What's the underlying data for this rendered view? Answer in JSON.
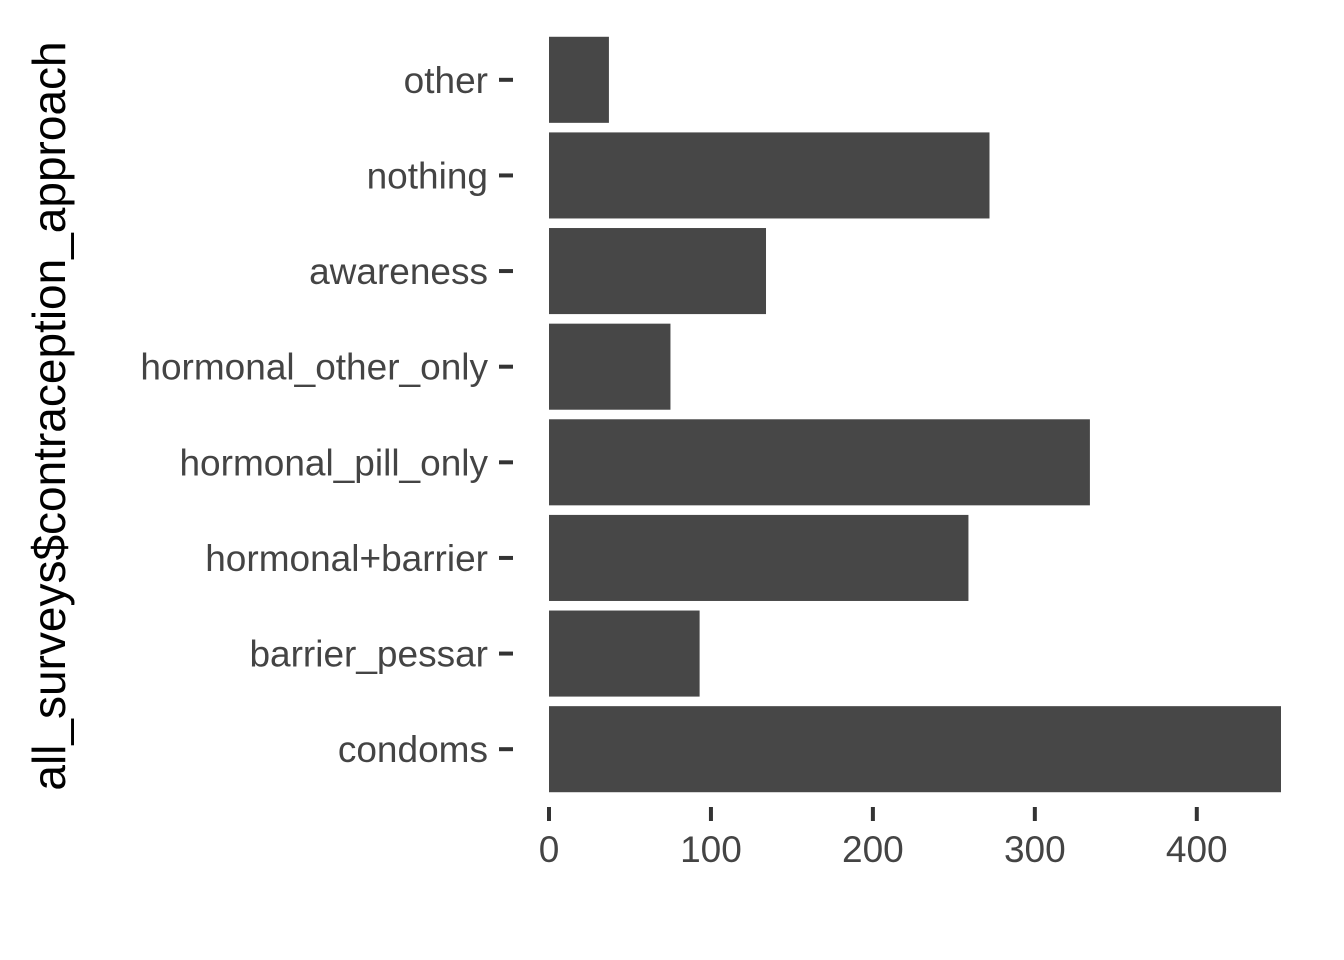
{
  "chart_data": {
    "type": "bar",
    "orientation": "horizontal",
    "title": "",
    "xlabel": "",
    "ylabel": "all_surveys$contraception_approach",
    "categories": [
      "condoms",
      "barrier_pessar",
      "hormonal+barrier",
      "hormonal_pill_only",
      "hormonal_other_only",
      "awareness",
      "nothing",
      "other"
    ],
    "values": [
      452,
      93,
      259,
      334,
      75,
      134,
      272,
      37
    ],
    "xlim": [
      0,
      452
    ],
    "xticks": [
      0,
      100,
      200,
      300,
      400
    ],
    "grid": false,
    "legend": "none",
    "bar_color": "#474747",
    "tick_color": "#333333"
  }
}
